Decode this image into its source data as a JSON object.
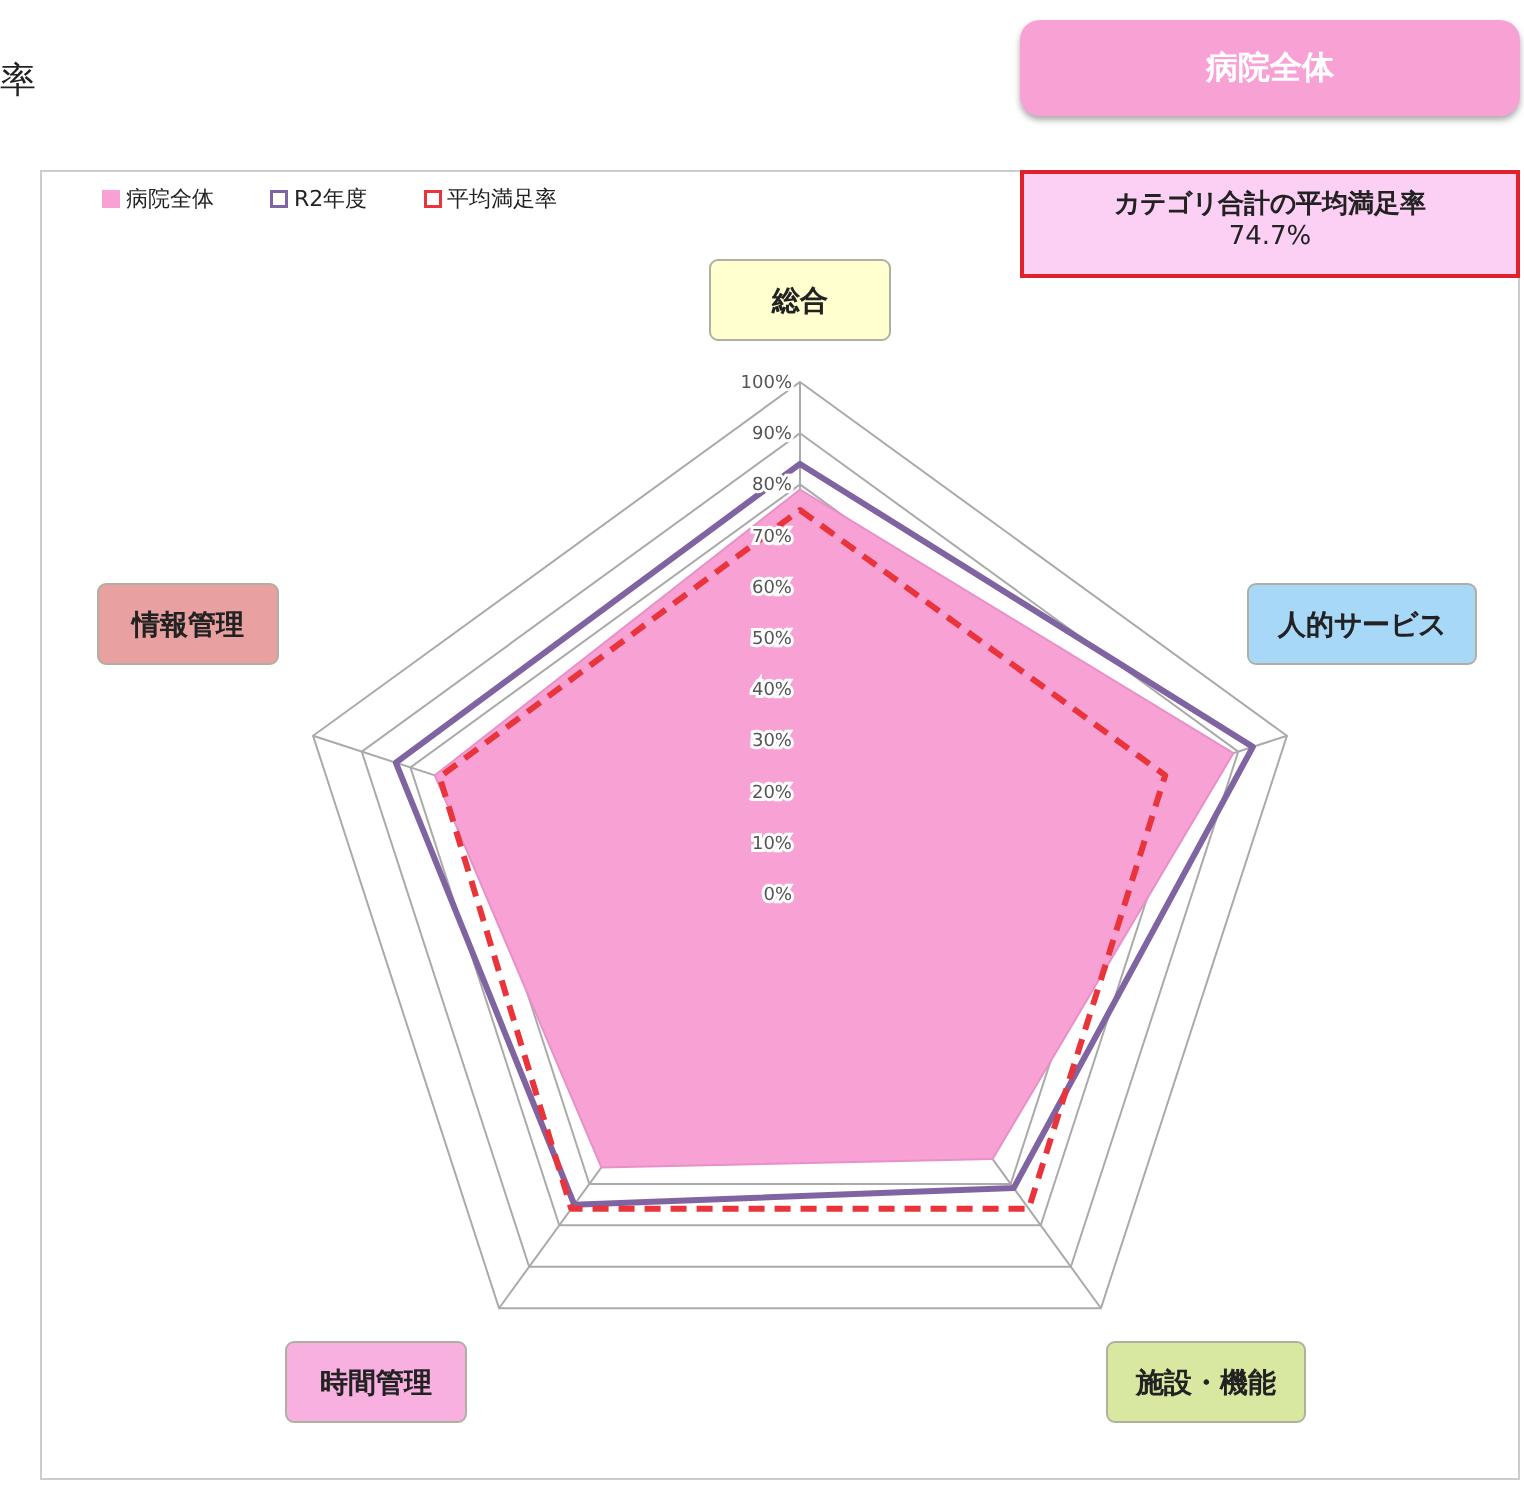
{
  "chart_data": {
    "type": "radar",
    "title": "率",
    "categories": [
      "総合",
      "人的サービス",
      "施設・機能",
      "時間管理",
      "情報管理"
    ],
    "series": [
      {
        "name": "病院全体",
        "color": "#f7a1d5",
        "values": [
          79,
          89,
          64,
          66,
          75
        ]
      },
      {
        "name": "R2年度",
        "color": "#8064a2",
        "values": [
          84,
          93,
          71,
          75,
          83
        ]
      },
      {
        "name": "平均満足率",
        "color": "#e8343a",
        "line_style": "dashed",
        "values": [
          75,
          75,
          76,
          76,
          74
        ]
      }
    ],
    "ylim": [
      0,
      100
    ],
    "yticks": [
      {
        "value": 0,
        "label": "0%"
      },
      {
        "value": 10,
        "label": "10%"
      },
      {
        "value": 20,
        "label": "20%"
      },
      {
        "value": 30,
        "label": "30%"
      },
      {
        "value": 40,
        "label": "40%"
      },
      {
        "value": 50,
        "label": "50%"
      },
      {
        "value": 60,
        "label": "60%"
      },
      {
        "value": 70,
        "label": "70%"
      },
      {
        "value": 80,
        "label": "80%"
      },
      {
        "value": 90,
        "label": "90%"
      },
      {
        "value": 100,
        "label": "100%"
      }
    ],
    "grid": true,
    "legend": "top left",
    "annotations": [
      "病院全体",
      "カテゴリ合計の平均満足率",
      "74.7%"
    ]
  }
}
